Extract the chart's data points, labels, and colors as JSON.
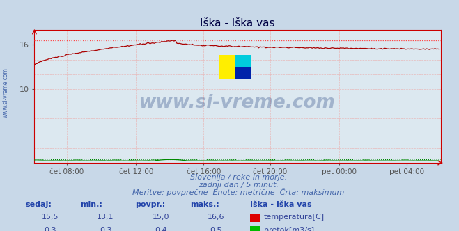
{
  "title": "Iška - Iška vas",
  "bg_color": "#c8d8e8",
  "plot_bg_color": "#dce8f0",
  "grid_color_minor": "#e8b8b8",
  "grid_color_major": "#d08080",
  "x_tick_labels": [
    "čet 08:00",
    "čet 12:00",
    "čet 16:00",
    "čet 20:00",
    "pet 00:00",
    "pet 04:00"
  ],
  "x_tick_positions_frac": [
    0.0833,
    0.25,
    0.4167,
    0.5833,
    0.75,
    0.9167
  ],
  "y_ticks": [
    10,
    16
  ],
  "ylim": [
    0,
    18.0
  ],
  "xlim_n": 288,
  "temp_color": "#aa0000",
  "flow_color": "#008800",
  "hline_color": "#ff4444",
  "hline_value": 16.6,
  "flow_hline_value": 0.5,
  "subtitle1": "Slovenija / reke in morje.",
  "subtitle2": "zadnji dan / 5 minut.",
  "subtitle3": "Meritve: povprečne  Enote: metrične  Črta: maksimum",
  "subtitle_color": "#4466aa",
  "table_headers": [
    "sedaj:",
    "min.:",
    "povpr.:",
    "maks.:"
  ],
  "table_row1_values": [
    "15,5",
    "13,1",
    "15,0",
    "16,6"
  ],
  "table_row2_values": [
    "0,3",
    "0,3",
    "0,4",
    "0,5"
  ],
  "table_label": "Iška - Iška vas",
  "legend_temp": "temperatura[C]",
  "legend_flow": "pretok[m3/s]",
  "temp_color_legend": "#dd0000",
  "flow_color_legend": "#00bb00",
  "title_color": "#000044",
  "axis_color": "#cc0000",
  "watermark": "www.si-vreme.com",
  "watermark_color": "#1a3a7a",
  "left_label": "www.si-vreme.com",
  "left_label_color": "#4466aa",
  "header_color": "#2244aa",
  "value_color": "#334499"
}
